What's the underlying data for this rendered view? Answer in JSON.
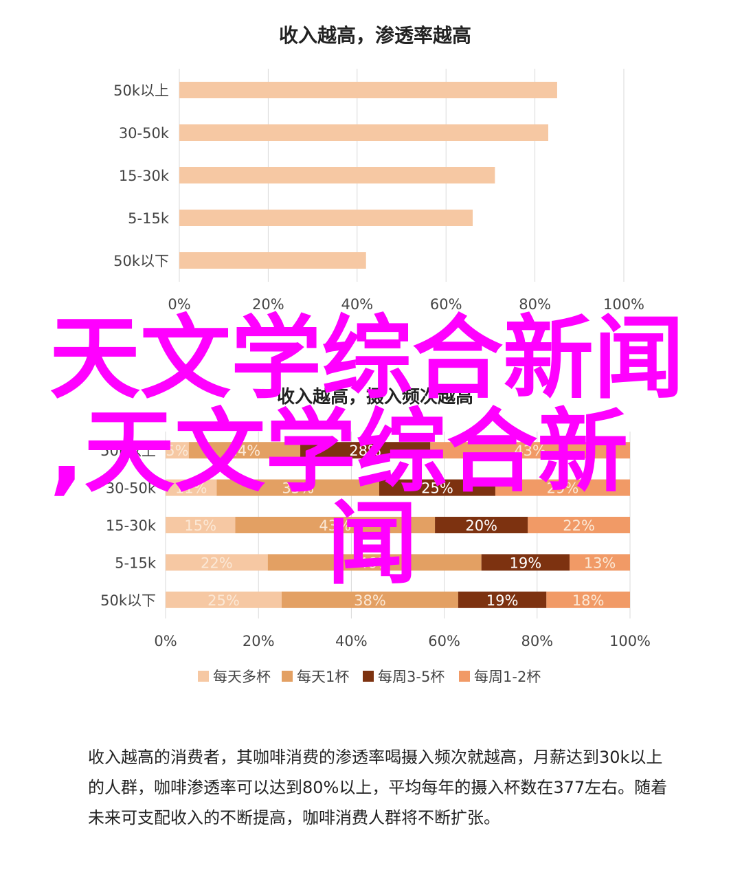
{
  "chart_data": [
    {
      "type": "bar",
      "orientation": "horizontal",
      "title": "收入越高，渗透率越高",
      "categories": [
        "50k以上",
        "30-50k",
        "15-30k",
        "5-15k",
        "50k以下"
      ],
      "values": [
        85,
        83,
        71,
        66,
        42
      ],
      "xlim": [
        0,
        100
      ],
      "xticks": [
        "0%",
        "20%",
        "40%",
        "60%",
        "80%",
        "100%"
      ],
      "grid": true,
      "color": "#f6c8a3"
    },
    {
      "type": "bar",
      "orientation": "horizontal",
      "stacked": true,
      "title": "收入越高，摄入频次越高",
      "categories": [
        "50k以上",
        "30-50k",
        "15-30k",
        "5-15k",
        "50k以下"
      ],
      "series": [
        {
          "name": "每天多杯",
          "color": "#f6c8a3",
          "values": [
            5,
            11,
            15,
            22,
            25
          ],
          "labels": [
            "5%",
            "11%",
            "15%",
            "22%",
            "25%"
          ]
        },
        {
          "name": "每天1杯",
          "color": "#e3a063",
          "values": [
            24,
            35,
            43,
            46,
            38
          ],
          "labels": [
            "24%",
            "35%",
            "43%",
            "46%",
            "38%"
          ]
        },
        {
          "name": "每周3-5杯",
          "color": "#7d3210",
          "values": [
            28,
            25,
            20,
            19,
            19
          ],
          "labels": [
            "28%",
            "25%",
            "20%",
            "19%",
            "19%"
          ]
        },
        {
          "name": "每周1-2杯",
          "color": "#f19a66",
          "values": [
            43,
            29,
            22,
            13,
            18
          ],
          "labels": [
            "43%",
            "29%",
            "22%",
            "13%",
            "18%"
          ]
        }
      ],
      "xlim": [
        0,
        100
      ],
      "xticks": [
        "0%",
        "20%",
        "40%",
        "60%",
        "80%",
        "100%"
      ],
      "grid": true,
      "legend": "bottom"
    }
  ],
  "overlay": {
    "line1": "天文学综合新闻",
    "line2": ",天文学综合新",
    "line3": "闻",
    "color": "#ff00ff"
  },
  "caption": "收入越高的消费者，其咖啡消费的渗透率喝摄入频次就越高，月薪达到30k以上的人群，咖啡渗透率可以达到80%以上，平均每年的摄入杯数在377左右。随着未来可支配收入的不断提高，咖啡消费人群将不断扩张。"
}
